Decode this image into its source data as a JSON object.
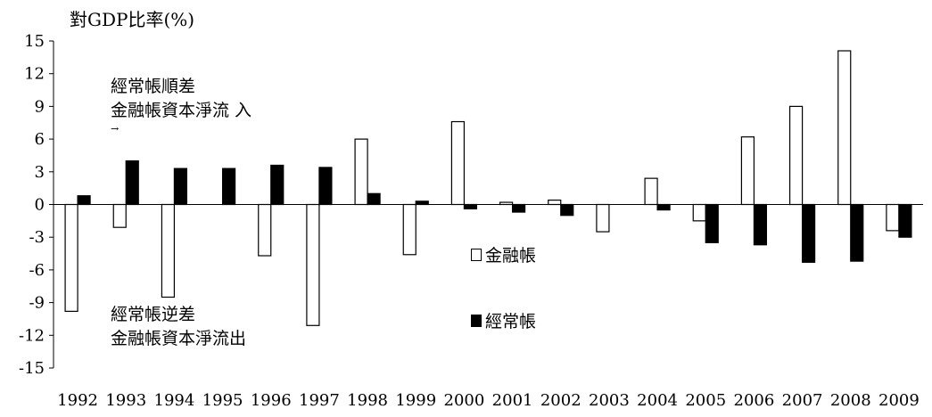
{
  "chart_data": {
    "type": "bar",
    "ylabel": "對GDP比率(%)",
    "categories": [
      "1992",
      "1993",
      "1994",
      "1995",
      "1996",
      "1997",
      "1998",
      "1999",
      "2000",
      "2001",
      "2002",
      "2003",
      "2004",
      "2005",
      "2006",
      "2007",
      "2008",
      "2009"
    ],
    "series": [
      {
        "name": "金融帳",
        "fill": "#ffffff",
        "values": [
          -9.8,
          -2.1,
          -8.5,
          0.0,
          -4.7,
          -11.1,
          6.0,
          -4.6,
          7.6,
          0.2,
          0.4,
          -2.5,
          2.4,
          -1.5,
          6.2,
          9.0,
          14.1,
          -2.4
        ]
      },
      {
        "name": "經常帳",
        "fill": "#000000",
        "values": [
          0.8,
          4.0,
          3.3,
          3.3,
          3.6,
          3.4,
          1.0,
          0.3,
          -0.4,
          -0.7,
          -1.0,
          0.0,
          -0.5,
          -3.5,
          -3.7,
          -5.3,
          -5.2,
          -3.0
        ]
      }
    ],
    "ylim": [
      -15,
      15
    ],
    "yticks": [
      15,
      12,
      9,
      6,
      3,
      0,
      -3,
      -6,
      -9,
      -12,
      -15
    ],
    "grid": false,
    "legend_position": "center-right",
    "annotations": {
      "top_line1": "經常帳順差",
      "top_line2": "金融帳資本淨流 入",
      "top_line3": "→",
      "bottom_line1": "經常帳逆差",
      "bottom_line2": "金融帳資本淨流出"
    }
  }
}
